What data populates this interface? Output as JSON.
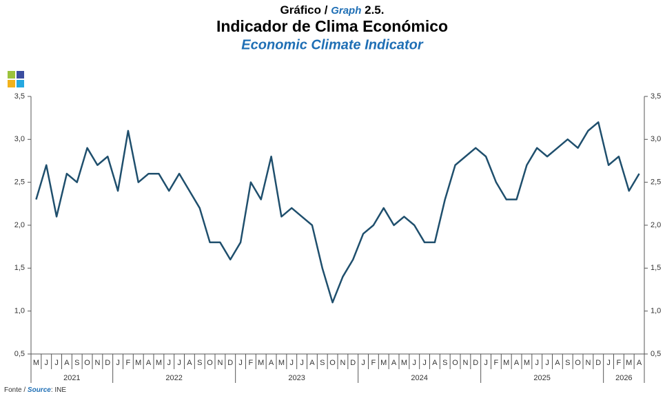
{
  "chart_data": {
    "type": "line",
    "title_prefix": "Gráfico /",
    "title_graph": "Graph",
    "title_number": "2.5.",
    "title": "Indicador de Clima Económico",
    "subtitle": "Economic Climate Indicator",
    "source_prefix": "Fonte /",
    "source_word": "Source",
    "source_value": ": INE",
    "categories": [
      "M",
      "J",
      "J",
      "A",
      "S",
      "O",
      "N",
      "D",
      "J",
      "F",
      "M",
      "A",
      "M",
      "J",
      "J",
      "A",
      "S",
      "O",
      "N",
      "D",
      "J",
      "F",
      "M",
      "A",
      "M",
      "J",
      "J",
      "A",
      "S",
      "O",
      "N",
      "D",
      "J",
      "F",
      "M",
      "A",
      "M",
      "J",
      "J",
      "A",
      "S",
      "O",
      "N",
      "D",
      "J",
      "F",
      "M",
      "A",
      "M",
      "J",
      "J",
      "A",
      "S",
      "O",
      "N",
      "D",
      "J",
      "F",
      "M",
      "A"
    ],
    "years": [
      "2021",
      "2022",
      "2023",
      "2024",
      "2025",
      "2026"
    ],
    "series": [
      {
        "name": "Economic Climate Indicator",
        "color": "#1f4f6d",
        "values": [
          2.3,
          2.7,
          2.1,
          2.6,
          2.5,
          2.9,
          2.7,
          2.8,
          2.4,
          3.1,
          2.5,
          2.6,
          2.6,
          2.4,
          2.6,
          2.4,
          2.2,
          1.8,
          1.8,
          1.6,
          1.8,
          2.5,
          2.3,
          2.8,
          2.1,
          2.2,
          2.1,
          2.0,
          1.5,
          1.1,
          1.4,
          1.6,
          1.9,
          2.0,
          2.2,
          2.0,
          2.1,
          2.0,
          1.8,
          1.8,
          2.3,
          2.7,
          2.8,
          2.9,
          2.8,
          2.5,
          2.3,
          2.3,
          2.7,
          2.9,
          2.8,
          2.9,
          3.0,
          2.9,
          3.1,
          3.2,
          2.7,
          2.8,
          2.4,
          2.6
        ]
      }
    ],
    "ylim": [
      0.5,
      3.5
    ],
    "yticks": [
      {
        "value": 0.5,
        "label": "0,5"
      },
      {
        "value": 1,
        "label": "1,0"
      },
      {
        "value": 1.5,
        "label": "1,5"
      },
      {
        "value": 2,
        "label": "2,0"
      },
      {
        "value": 2.5,
        "label": "2,5"
      },
      {
        "value": 3,
        "label": "3,0"
      },
      {
        "value": 3.5,
        "label": "3,5"
      }
    ],
    "y2lim": [
      0.5,
      3.5
    ],
    "y2ticks": [
      {
        "value": 0.5,
        "label": "0,5"
      },
      {
        "value": 1,
        "label": "1,0"
      },
      {
        "value": 1.5,
        "label": "1,5"
      },
      {
        "value": 2,
        "label": "2,0"
      },
      {
        "value": 2.5,
        "label": "2,5"
      },
      {
        "value": 3,
        "label": "3,0"
      },
      {
        "value": 3.5,
        "label": "3,5"
      }
    ]
  }
}
